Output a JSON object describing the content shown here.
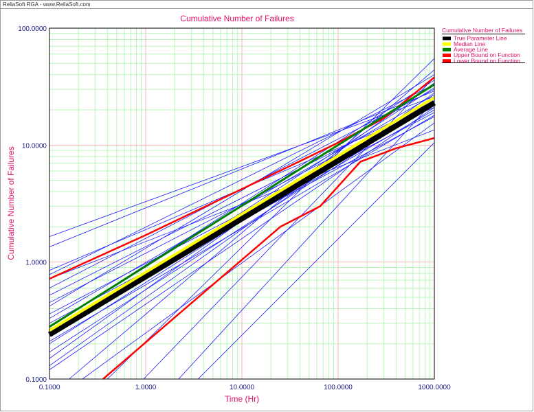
{
  "window": {
    "header_text": "ReliaSoft RGA - www.ReliaSoft.com"
  },
  "colors": {
    "title": "#e0106a",
    "tick_text": "#1a1a8a",
    "grid_major": "#ffb3b3",
    "grid_minor": "#b8f5b8",
    "frame": "#000000",
    "simulation_lines": "#1a1aff",
    "true_parameter": "#000000",
    "median": "#ffff00",
    "average": "#008000",
    "bounds": "#ff0000"
  },
  "chart_data": {
    "type": "line",
    "title": "Cumulative Number of Failures",
    "xlabel": "Time (Hr)",
    "ylabel": "Cumulative Number of Failures",
    "x_scale": "log",
    "y_scale": "log",
    "xlim": [
      0.1,
      1000
    ],
    "ylim": [
      0.1,
      100
    ],
    "x_ticks": [
      "0.1000",
      "1.0000",
      "10.0000",
      "100.0000",
      "1000.0000"
    ],
    "y_ticks": [
      "0.1000",
      "1.0000",
      "10.0000",
      "100.0000"
    ],
    "grid": true,
    "legend": {
      "title": "Cumulative Number of Failures",
      "placement": "right",
      "entries": [
        {
          "label": "True Parameter Line",
          "color": "#000000"
        },
        {
          "label": "Median Line",
          "color": "#ffff00"
        },
        {
          "label": "Average Line",
          "color": "#008000"
        },
        {
          "label": "Upper Bound on Function",
          "color": "#ff0000"
        },
        {
          "label": "Lower Bound on Function",
          "color": "#ff0000"
        }
      ]
    },
    "series": [
      {
        "name": "True Parameter Line",
        "x": [
          0.1,
          1000
        ],
        "y": [
          0.24,
          23
        ]
      },
      {
        "name": "Median Line",
        "x": [
          0.1,
          1000
        ],
        "y": [
          0.26,
          25.5
        ]
      },
      {
        "name": "Average Line",
        "x": [
          0.1,
          1000
        ],
        "y": [
          0.28,
          33
        ]
      },
      {
        "name": "Upper Bound on Function",
        "x": [
          0.1,
          1,
          30,
          100,
          300,
          1000
        ],
        "y": [
          0.72,
          1.7,
          6.5,
          10.5,
          17,
          38
        ]
      },
      {
        "name": "Lower Bound on Function",
        "x": [
          0.36,
          25,
          65,
          170,
          400,
          1000
        ],
        "y": [
          0.1,
          2.0,
          3.0,
          7.2,
          9.4,
          11.5
        ]
      }
    ],
    "simulations": [
      {
        "x": [
          0.1,
          1000
        ],
        "y": [
          1.65,
          26
        ]
      },
      {
        "x": [
          0.1,
          1000
        ],
        "y": [
          1.35,
          29
        ]
      },
      {
        "x": [
          0.1,
          1000
        ],
        "y": [
          0.85,
          21
        ]
      },
      {
        "x": [
          0.1,
          1000
        ],
        "y": [
          0.78,
          33
        ]
      },
      {
        "x": [
          0.1,
          1000
        ],
        "y": [
          0.6,
          30
        ]
      },
      {
        "x": [
          0.1,
          1000
        ],
        "y": [
          0.52,
          24
        ]
      },
      {
        "x": [
          0.1,
          1000
        ],
        "y": [
          0.45,
          22
        ]
      },
      {
        "x": [
          0.1,
          1000
        ],
        "y": [
          0.42,
          40
        ]
      },
      {
        "x": [
          0.1,
          1000
        ],
        "y": [
          0.36,
          19
        ]
      },
      {
        "x": [
          0.1,
          1000
        ],
        "y": [
          0.33,
          27
        ]
      },
      {
        "x": [
          0.1,
          1000
        ],
        "y": [
          0.3,
          17.5
        ]
      },
      {
        "x": [
          0.1,
          1000
        ],
        "y": [
          0.28,
          36
        ]
      },
      {
        "x": [
          0.1,
          1000
        ],
        "y": [
          0.25,
          20
        ]
      },
      {
        "x": [
          0.1,
          1000
        ],
        "y": [
          0.23,
          31
        ]
      },
      {
        "x": [
          0.1,
          1000
        ],
        "y": [
          0.21,
          18
        ]
      },
      {
        "x": [
          0.1,
          1000
        ],
        "y": [
          0.2,
          25
        ]
      },
      {
        "x": [
          0.1,
          1000
        ],
        "y": [
          0.17,
          23
        ]
      },
      {
        "x": [
          0.1,
          1000
        ],
        "y": [
          0.15,
          34
        ]
      },
      {
        "x": [
          0.1,
          1000
        ],
        "y": [
          0.13,
          28
        ]
      },
      {
        "x": [
          0.1,
          1000
        ],
        "y": [
          0.12,
          21
        ]
      },
      {
        "x": [
          0.16,
          1000
        ],
        "y": [
          0.1,
          44
        ]
      },
      {
        "x": [
          0.4,
          1000
        ],
        "y": [
          0.1,
          55
        ]
      },
      {
        "x": [
          0.95,
          1000
        ],
        "y": [
          0.1,
          38
        ]
      },
      {
        "x": [
          2.2,
          1000
        ],
        "y": [
          0.1,
          24
        ]
      },
      {
        "x": [
          3.5,
          1000
        ],
        "y": [
          0.1,
          10.5
        ]
      },
      {
        "x": [
          0.22,
          1000
        ],
        "y": [
          0.1,
          15.5
        ]
      },
      {
        "x": [
          0.1,
          1000
        ],
        "y": [
          0.72,
          13.5
        ]
      }
    ]
  }
}
